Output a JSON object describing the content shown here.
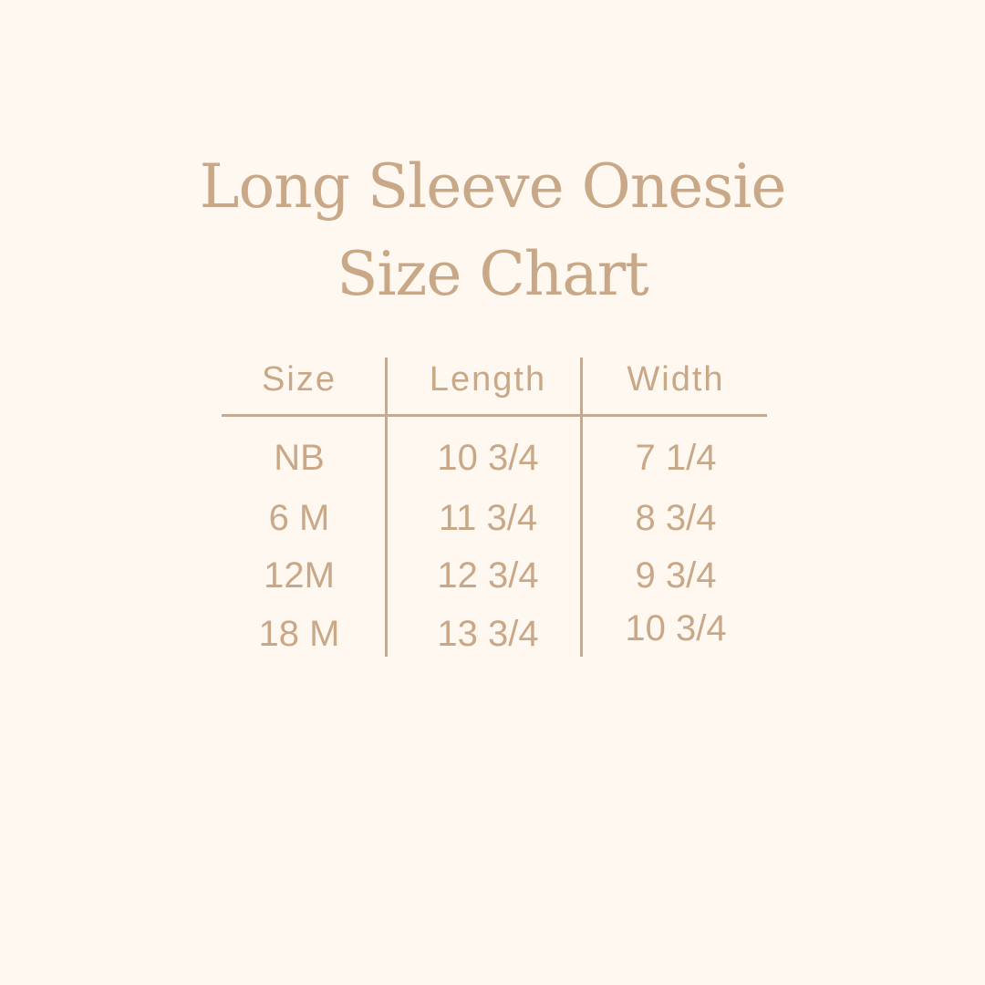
{
  "title": {
    "line1": "Long Sleeve Onesie",
    "line2": "Size Chart"
  },
  "colors": {
    "background": "#fef8f1",
    "text": "#c9a888",
    "rules": "#c2aa95"
  },
  "table": {
    "headers": [
      "Size",
      "Length",
      "Width"
    ],
    "rows": [
      [
        "NB",
        "10 3/4",
        "7 1/4"
      ],
      [
        "6 M",
        "11 3/4",
        "8 3/4"
      ],
      [
        "12M",
        "12 3/4",
        "9 3/4"
      ],
      [
        "18 M",
        "13 3/4",
        "10 3/4"
      ]
    ]
  }
}
